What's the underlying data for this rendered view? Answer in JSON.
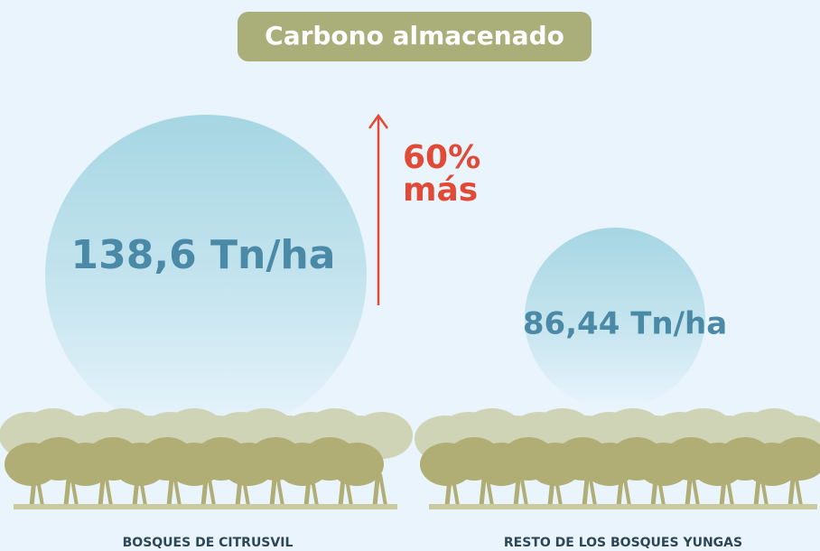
{
  "header": {
    "title": "Carbono almacenado"
  },
  "left": {
    "value": "138,6 Tn/ha",
    "label": "BOSQUES DE CITRUSVIL"
  },
  "increase": {
    "line1": "60%",
    "line2": "más"
  },
  "right": {
    "value": "86,44 Tn/ha",
    "label": "RESTO DE LOS BOSQUES YUNGAS"
  }
}
